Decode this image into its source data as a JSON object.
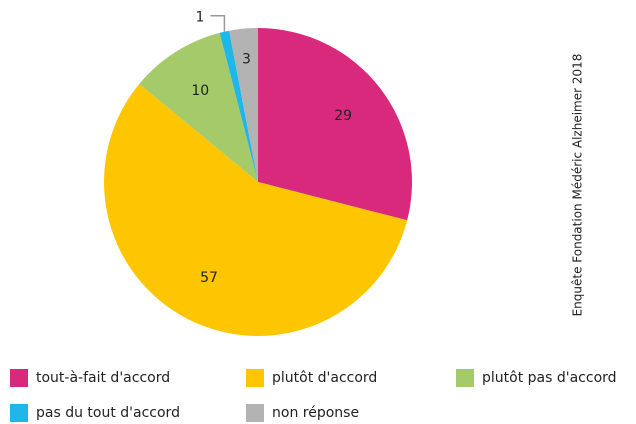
{
  "chart_data": {
    "type": "pie",
    "categories": [
      "tout-à-fait d'accord",
      "plutôt d'accord",
      "plutôt pas d'accord",
      "pas du tout d'accord",
      "non réponse"
    ],
    "values": [
      29,
      57,
      10,
      1,
      3
    ],
    "colors": [
      "#d9297c",
      "#fdc600",
      "#a5ca6a",
      "#1fb6e8",
      "#b3b3b3"
    ],
    "source": "Enquête Fondation Médéric Alzheimer 2018"
  }
}
